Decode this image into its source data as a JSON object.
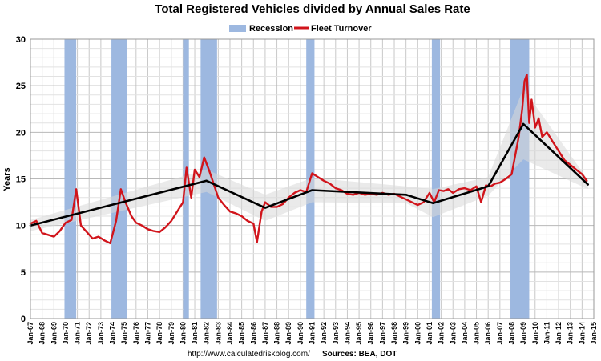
{
  "chart_data": {
    "type": "line",
    "title": "Total Registered Vehicles divided by Annual Sales Rate",
    "ylabel": "Years",
    "xlabel": "",
    "ylim": [
      0,
      30
    ],
    "xlim": [
      1967.0,
      2015.0
    ],
    "yticks": [
      0,
      5,
      10,
      15,
      20,
      25,
      30
    ],
    "xtick_labels": [
      "Jan-67",
      "Jan-68",
      "Jan-69",
      "Jan-70",
      "Jan-71",
      "Jan-72",
      "Jan-73",
      "Jan-74",
      "Jan-75",
      "Jan-76",
      "Jan-77",
      "Jan-78",
      "Jan-79",
      "Jan-80",
      "Jan-81",
      "Jan-82",
      "Jan-83",
      "Jan-84",
      "Jan-85",
      "Jan-86",
      "Jan-87",
      "Jan-88",
      "Jan-89",
      "Jan-90",
      "Jan-91",
      "Jan-92",
      "Jan-93",
      "Jan-94",
      "Jan-95",
      "Jan-96",
      "Jan-97",
      "Jan-98",
      "Jan-99",
      "Jan-00",
      "Jan-01",
      "Jan-02",
      "Jan-03",
      "Jan-04",
      "Jan-05",
      "Jan-06",
      "Jan-07",
      "Jan-08",
      "Jan-09",
      "Jan-10",
      "Jan-11",
      "Jan-12",
      "Jan-13",
      "Jan-14",
      "Jan-15"
    ],
    "grid": true,
    "legend": {
      "placement": "top-center",
      "entries": [
        {
          "label": "Recession",
          "color": "#9db8e0",
          "kind": "bar"
        },
        {
          "label": "Fleet Turnover",
          "color": "#d1141b",
          "kind": "line"
        }
      ]
    },
    "recessions": [
      [
        1969.9,
        1970.9
      ],
      [
        1973.9,
        1975.2
      ],
      [
        1980.0,
        1980.5
      ],
      [
        1981.5,
        1982.9
      ],
      [
        1990.5,
        1991.2
      ],
      [
        2001.2,
        2001.9
      ],
      [
        2007.9,
        2009.5
      ]
    ],
    "series": [
      {
        "name": "Fleet Turnover",
        "color": "#d1141b",
        "x": [
          1967.0,
          1967.5,
          1968.0,
          1968.5,
          1969.0,
          1969.5,
          1970.0,
          1970.5,
          1970.9,
          1971.3,
          1971.8,
          1972.3,
          1972.8,
          1973.3,
          1973.8,
          1974.3,
          1974.7,
          1975.1,
          1975.6,
          1976.0,
          1976.5,
          1977.0,
          1977.5,
          1978.0,
          1978.5,
          1979.0,
          1979.5,
          1980.0,
          1980.3,
          1980.7,
          1981.0,
          1981.4,
          1981.8,
          1982.2,
          1982.6,
          1983.0,
          1983.5,
          1984.0,
          1984.5,
          1985.0,
          1985.5,
          1986.0,
          1986.3,
          1986.7,
          1987.0,
          1987.5,
          1988.0,
          1988.5,
          1989.0,
          1989.5,
          1990.0,
          1990.5,
          1991.0,
          1991.5,
          1992.0,
          1992.5,
          1993.0,
          1993.5,
          1994.0,
          1994.5,
          1995.0,
          1995.5,
          1996.0,
          1996.5,
          1997.0,
          1997.5,
          1998.0,
          1998.5,
          1999.0,
          1999.5,
          2000.0,
          2000.5,
          2001.0,
          2001.4,
          2001.8,
          2002.2,
          2002.6,
          2003.0,
          2003.5,
          2004.0,
          2004.5,
          2005.0,
          2005.4,
          2005.8,
          2006.2,
          2006.6,
          2007.0,
          2007.5,
          2008.0,
          2008.3,
          2008.6,
          2008.9,
          2009.1,
          2009.3,
          2009.5,
          2009.7,
          2010.0,
          2010.3,
          2010.6,
          2011.0,
          2011.5,
          2012.0,
          2012.5,
          2013.0,
          2013.5,
          2014.0,
          2014.4
        ],
        "values": [
          10.2,
          10.5,
          9.2,
          9.0,
          8.8,
          9.4,
          10.3,
          10.6,
          13.9,
          10.0,
          9.3,
          8.6,
          8.8,
          8.4,
          8.1,
          10.5,
          13.9,
          12.5,
          11.0,
          10.3,
          10.0,
          9.6,
          9.4,
          9.3,
          9.8,
          10.5,
          11.5,
          12.5,
          16.2,
          13.0,
          16.0,
          15.2,
          17.3,
          16.0,
          14.5,
          13.0,
          12.2,
          11.5,
          11.3,
          11.0,
          10.5,
          10.2,
          8.2,
          11.5,
          12.5,
          12.0,
          12.0,
          12.3,
          13.0,
          13.5,
          13.8,
          13.6,
          15.6,
          15.2,
          14.8,
          14.5,
          14.0,
          13.8,
          13.4,
          13.3,
          13.5,
          13.3,
          13.4,
          13.3,
          13.5,
          13.3,
          13.4,
          13.1,
          12.8,
          12.5,
          12.2,
          12.5,
          13.5,
          12.5,
          13.8,
          13.7,
          13.9,
          13.5,
          13.9,
          14.0,
          13.8,
          14.2,
          12.5,
          14.3,
          14.2,
          14.5,
          14.6,
          15.0,
          15.5,
          17.5,
          19.5,
          22.5,
          25.5,
          26.2,
          21.0,
          23.5,
          20.5,
          21.5,
          19.5,
          20.0,
          19.0,
          18.0,
          17.0,
          16.5,
          16.0,
          15.5,
          14.8
        ]
      },
      {
        "name": "",
        "color": "#000000",
        "x": [
          1967.0,
          1982.0,
          1987.0,
          1991.0,
          1999.0,
          2001.3,
          2006.0,
          2009.0,
          2014.5
        ],
        "values": [
          10.0,
          14.8,
          11.9,
          13.8,
          13.3,
          12.4,
          14.2,
          20.9,
          14.4
        ]
      }
    ]
  },
  "footer": {
    "url": "http://www.calculatedriskblog.com/",
    "sources": "Sources: BEA, DOT"
  }
}
